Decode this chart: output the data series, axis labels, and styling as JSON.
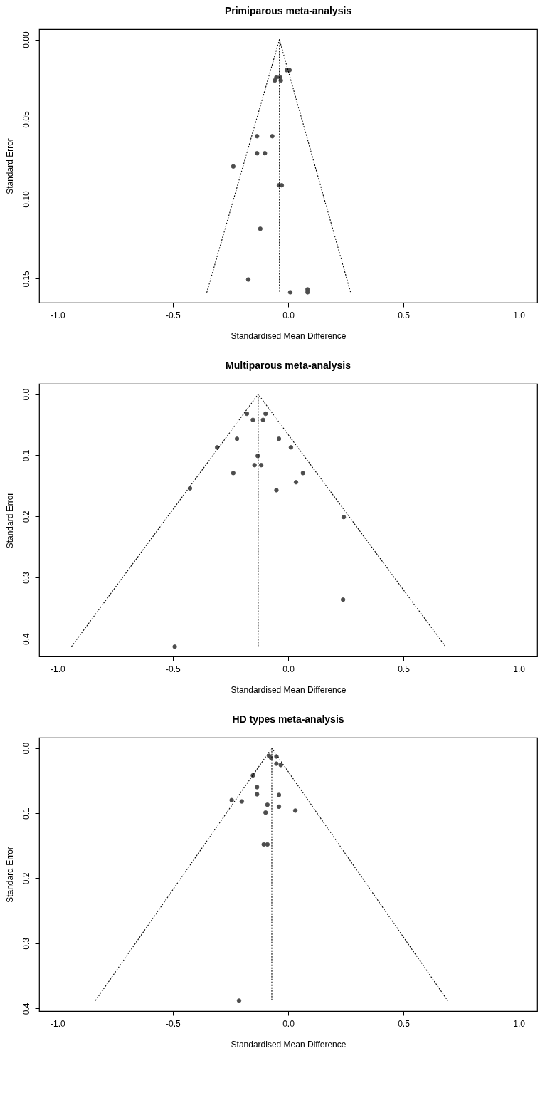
{
  "chart_data": [
    {
      "type": "scatter",
      "title": "Primiparous meta-analysis",
      "xlabel": "Standardised Mean Difference",
      "ylabel": "Standard Error",
      "xlim": [
        -1.08,
        1.08
      ],
      "ylim": [
        0.165,
        -0.0065
      ],
      "xticks": [
        {
          "value": -1,
          "label": "-1.0"
        },
        {
          "value": -0.5,
          "label": "-0.5"
        },
        {
          "value": 0,
          "label": "0.0"
        },
        {
          "value": 0.5,
          "label": "0.5"
        },
        {
          "value": 1,
          "label": "1.0"
        }
      ],
      "yticks": [
        {
          "value": 0,
          "label": "0.00"
        },
        {
          "value": 0.05,
          "label": "0.05"
        },
        {
          "value": 0.1,
          "label": "0.10"
        },
        {
          "value": 0.15,
          "label": "0.15"
        }
      ],
      "marker": "circle",
      "series": [
        {
          "color": "#4d4d4d",
          "x": [
            -0.006,
            0.006,
            -0.051,
            -0.035,
            -0.058,
            -0.032,
            -0.135,
            -0.069,
            -0.135,
            -0.101,
            -0.238,
            -0.04,
            -0.028,
            -0.121,
            -0.173,
            0.009,
            0.084,
            0.084
          ],
          "values": [
            0.0192,
            0.0192,
            0.0237,
            0.0237,
            0.0257,
            0.0257,
            0.0606,
            0.0606,
            0.0713,
            0.0713,
            0.0796,
            0.0914,
            0.0914,
            0.1187,
            0.1505,
            0.1585,
            0.1567,
            0.1585
          ]
        },
        {
          "type": "line",
          "color": "#000000",
          "line_style": "dotted",
          "marker": "none",
          "x": [
            -0.353,
            -0.038,
            0.271
          ],
          "values": [
            0.1587,
            0,
            0.1587
          ]
        },
        {
          "type": "line",
          "color": "#000000",
          "line_style": "dotted",
          "marker": "none",
          "x": [
            -0.038,
            -0.038
          ],
          "values": [
            0,
            0.1587
          ]
        }
      ]
    },
    {
      "type": "scatter",
      "title": "Multiparous meta-analysis",
      "xlabel": "Standardised Mean Difference",
      "ylabel": "Standard Error",
      "xlim": [
        -1.08,
        1.08
      ],
      "ylim": [
        0.429,
        -0.017
      ],
      "xticks": [
        {
          "value": -1,
          "label": "-1.0"
        },
        {
          "value": -0.5,
          "label": "-0.5"
        },
        {
          "value": 0,
          "label": "0.0"
        },
        {
          "value": 0.5,
          "label": "0.5"
        },
        {
          "value": 1,
          "label": "1.0"
        }
      ],
      "yticks": [
        {
          "value": 0,
          "label": "0.0"
        },
        0.1,
        0.2,
        0.3,
        0.4
      ],
      "marker": "circle",
      "series": [
        {
          "color": "#4d4d4d",
          "x": [
            -0.179,
            -0.098,
            -0.153,
            -0.109,
            -0.222,
            -0.04,
            -0.308,
            0.012,
            -0.132,
            -0.146,
            -0.117,
            -0.238,
            0.064,
            0.034,
            -0.426,
            -0.051,
            0.241,
            0.238,
            -0.492
          ],
          "values": [
            0.032,
            0.032,
            0.042,
            0.042,
            0.073,
            0.073,
            0.087,
            0.087,
            0.101,
            0.116,
            0.116,
            0.129,
            0.129,
            0.144,
            0.154,
            0.157,
            0.201,
            0.336,
            0.413
          ]
        },
        {
          "type": "line",
          "color": "#000000",
          "line_style": "dotted",
          "marker": "none",
          "x": [
            -0.94,
            -0.13,
            0.683
          ],
          "values": [
            0.413,
            0,
            0.413
          ]
        },
        {
          "type": "line",
          "color": "#000000",
          "line_style": "dotted",
          "marker": "none",
          "x": [
            -0.13,
            -0.13
          ],
          "values": [
            0,
            0.413
          ]
        }
      ]
    },
    {
      "type": "scatter",
      "title": "HD types meta-analysis",
      "xlabel": "Standardised Mean Difference",
      "ylabel": "Standard Error",
      "xlim": [
        -1.08,
        1.08
      ],
      "ylim": [
        0.404,
        -0.016
      ],
      "xticks": [
        {
          "value": -1,
          "label": "-1.0"
        },
        {
          "value": -0.5,
          "label": "-0.5"
        },
        {
          "value": 0,
          "label": "0.0"
        },
        {
          "value": 0.5,
          "label": "0.5"
        },
        {
          "value": 1,
          "label": "1.0"
        }
      ],
      "yticks": [
        {
          "value": 0,
          "label": "0.0"
        },
        0.1,
        0.2,
        0.3,
        0.4
      ],
      "marker": "circle",
      "series": [
        {
          "color": "#4d4d4d",
          "x": [
            -0.083,
            -0.074,
            -0.051,
            -0.051,
            -0.032,
            -0.153,
            -0.135,
            -0.135,
            -0.04,
            -0.245,
            -0.201,
            -0.09,
            -0.04,
            0.031,
            -0.098,
            -0.106,
            -0.09,
            -0.213
          ],
          "values": [
            0.012,
            0.015,
            0.013,
            0.024,
            0.026,
            0.042,
            0.06,
            0.071,
            0.072,
            0.08,
            0.082,
            0.087,
            0.09,
            0.096,
            0.099,
            0.148,
            0.148,
            0.388
          ]
        },
        {
          "type": "line",
          "color": "#000000",
          "line_style": "dotted",
          "marker": "none",
          "x": [
            -0.836,
            -0.071,
            0.692
          ],
          "values": [
            0.388,
            0,
            0.388
          ]
        },
        {
          "type": "line",
          "color": "#000000",
          "line_style": "dotted",
          "marker": "none",
          "x": [
            -0.071,
            -0.071
          ],
          "values": [
            0,
            0.388
          ]
        }
      ]
    }
  ]
}
